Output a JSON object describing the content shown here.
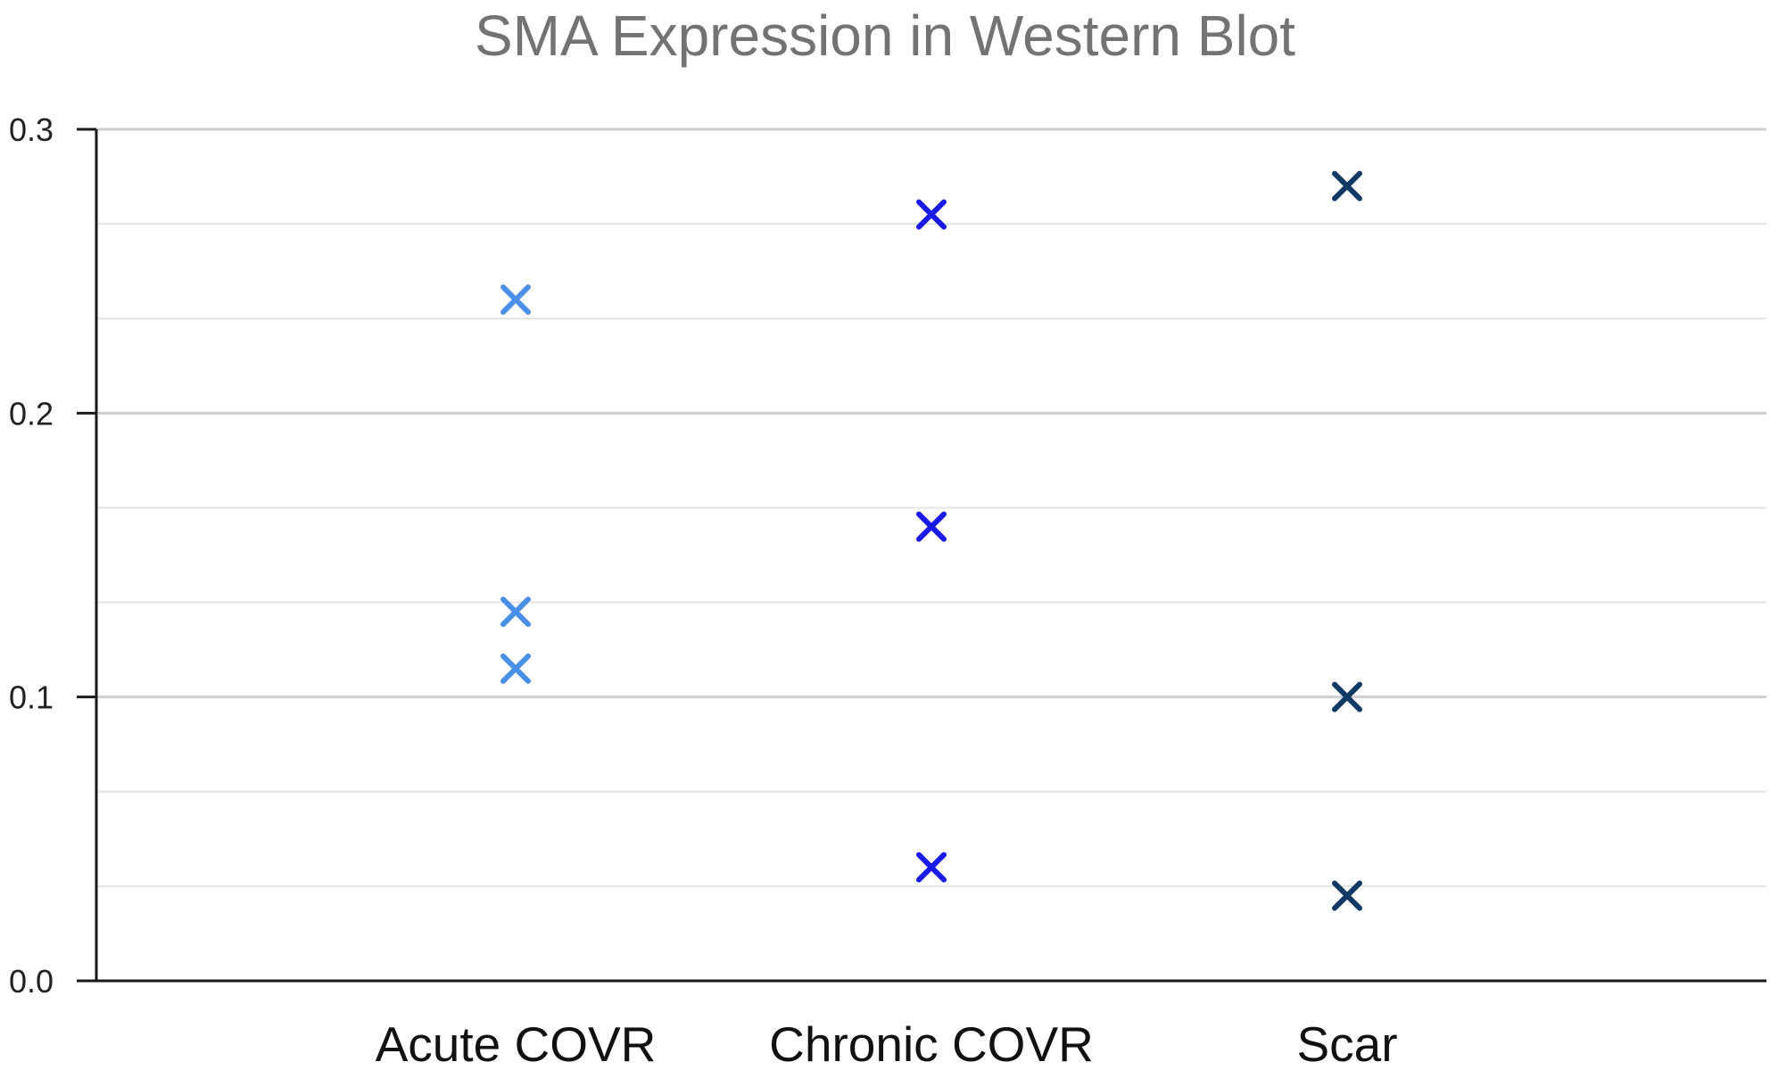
{
  "chart_data": {
    "type": "scatter",
    "title": "SMA Expression in Western Blot",
    "xlabel": "",
    "ylabel": "",
    "categories": [
      "Acute COVR",
      "Chronic COVR",
      "Scar"
    ],
    "ylim": [
      0,
      0.3
    ],
    "yticks": [
      "0.0",
      "0.1",
      "0.2",
      "0.3"
    ],
    "grid": true,
    "legend": "none",
    "marker": "x",
    "series": [
      {
        "category": "Acute COVR",
        "values": [
          0.24,
          0.13,
          0.11
        ],
        "color": "#4a8fe8"
      },
      {
        "category": "Chronic COVR",
        "values": [
          0.27,
          0.16,
          0.04
        ],
        "color": "#1a1ae6"
      },
      {
        "category": "Scar",
        "values": [
          0.28,
          0.1,
          0.03
        ],
        "color": "#0f3a66"
      }
    ]
  }
}
